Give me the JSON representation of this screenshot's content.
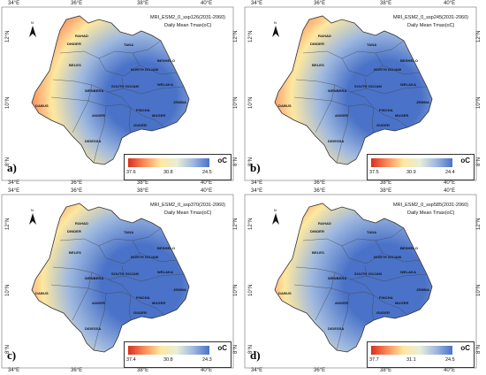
{
  "panels": [
    {
      "letter": "a)",
      "title_line1": "MRI_ESM2_0_ssp126(2031-2060)",
      "title_line2": "Daily Mean Tmax(oC)",
      "legend_unit": "oC",
      "legend_values": [
        "37.6",
        "30.8",
        "24.5"
      ],
      "top_ticks": [
        "34°E",
        "36°E",
        "38°E",
        "40°E"
      ],
      "bottom_ticks": [
        "34°E",
        "36°E",
        "38°E",
        "40°E"
      ],
      "lat_ticks": [
        "12°N",
        "10°N",
        "8°N"
      ],
      "regions": [
        "RAHAD",
        "DINDER",
        "BELES",
        "TANA",
        "BESHELO",
        "NORTH GOJAM",
        "SOUTH GOJAM",
        "WELAKA",
        "WENBERA",
        "JEMMA",
        "DABUS",
        "FINCHA",
        "ANGER",
        "MUGER",
        "GUDER",
        "DIDESSA"
      ],
      "colors": {
        "hot": "#d7301f",
        "warm": "#fc8d59",
        "mid": "#fee8a0",
        "cool": "#9fb9df",
        "cold": "#4a72c8"
      },
      "cool_extent": 0.45
    },
    {
      "letter": "b)",
      "title_line1": "MRI_ESM2_0_ssp245(2031-2060)",
      "title_line2": "Daily Mean Tmax(oC)",
      "legend_unit": "oC",
      "legend_values": [
        "37.5",
        "30.9",
        "24.4"
      ],
      "top_ticks": [
        "34°E",
        "36°E",
        "38°E",
        "40°E"
      ],
      "bottom_ticks": [
        "34°E",
        "36°E",
        "38°E",
        "40°E"
      ],
      "lat_ticks": [
        "12°N",
        "10°N",
        "8°N"
      ],
      "regions": [
        "RAHAD",
        "DINDER",
        "BELES",
        "TANA",
        "BESHELO",
        "NORTH GOJAM",
        "SOUTH GOJAM",
        "WELAKA",
        "WENBERA",
        "JEMMA",
        "DABUS",
        "FINCHA",
        "ANGER",
        "MUGER",
        "GUDER",
        "DIDESSA"
      ],
      "colors": {
        "hot": "#d7301f",
        "warm": "#fc8d59",
        "mid": "#fee8a0",
        "cool": "#9fb9df",
        "cold": "#4a72c8"
      },
      "cool_extent": 0.5
    },
    {
      "letter": "c)",
      "title_line1": "MRI_ESM2_0_ssp370(2031-2060)",
      "title_line2": "Daily Mean Tmax(oC)",
      "legend_unit": "oC",
      "legend_values": [
        "37.4",
        "30.8",
        "24.3"
      ],
      "top_ticks": [
        "34°E",
        "36°E",
        "38°E",
        "40°E"
      ],
      "bottom_ticks": [
        "34°E",
        "36°E",
        "38°E",
        "40°E"
      ],
      "lat_ticks": [
        "12°N",
        "10°N",
        "8°N"
      ],
      "regions": [
        "RAHAD",
        "DINDER",
        "BELES",
        "TANA",
        "BESHELO",
        "NORTH GOJAM",
        "SOUTH GOJAM",
        "WELAKA",
        "WENBERA",
        "JEMMA",
        "DABUS",
        "FINCHA",
        "ANGER",
        "MUGER",
        "GUDER",
        "DIDESSA"
      ],
      "colors": {
        "hot": "#d7301f",
        "warm": "#fc8d59",
        "mid": "#fee8a0",
        "cool": "#9fb9df",
        "cold": "#4a72c8"
      },
      "cool_extent": 0.6
    },
    {
      "letter": "d)",
      "title_line1": "MRI_ESM2_0_ssp585(2031-2060)",
      "title_line2": "Daily Mean Tmax(oC)",
      "legend_unit": "oC",
      "legend_values": [
        "37.7",
        "31.1",
        "24.5"
      ],
      "top_ticks": [
        "34°E",
        "36°E",
        "38°E",
        "40°E"
      ],
      "bottom_ticks": [
        "34°E",
        "36°E",
        "38°E",
        "40°E"
      ],
      "lat_ticks": [
        "12°N",
        "10°N",
        "8°N"
      ],
      "regions": [
        "RAHAD",
        "DINDER",
        "BELES",
        "TANA",
        "BESHELO",
        "NORTH GOJAM",
        "SOUTH GOJAM",
        "WELAKA",
        "WENBERA",
        "JEMMA",
        "DABUS",
        "FINCHA",
        "ANGER",
        "MUGER",
        "GUDER",
        "DIDESSA"
      ],
      "colors": {
        "hot": "#d7301f",
        "warm": "#fc8d59",
        "mid": "#fee8a0",
        "cool": "#9fb9df",
        "cold": "#4a72c8"
      },
      "cool_extent": 0.62
    }
  ]
}
